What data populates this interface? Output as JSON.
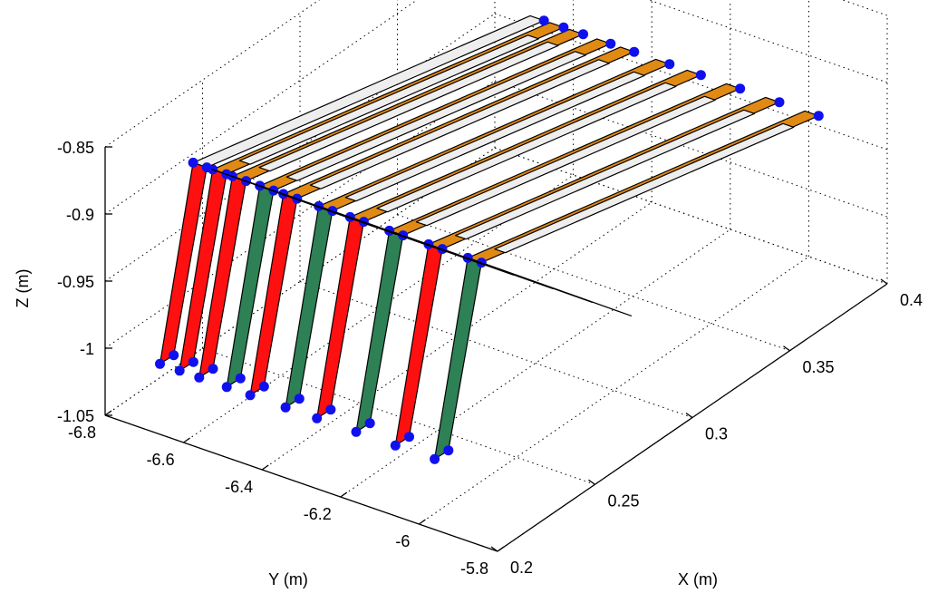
{
  "chart_data": {
    "type": "3d-surface",
    "title": "",
    "xlabel": "X (m)",
    "ylabel": "Y (m)",
    "zlabel": "Z (m)",
    "xlim": [
      0.2,
      0.4
    ],
    "ylim": [
      -6.8,
      -5.8
    ],
    "zlim": [
      -1.05,
      -0.85
    ],
    "x_ticks": [
      "0.2",
      "0.25",
      "0.3",
      "0.35",
      "0.4"
    ],
    "y_ticks": [
      "-5.8",
      "-6",
      "-6.2",
      "-6.4",
      "-6.6",
      "-6.8"
    ],
    "z_ticks": [
      "-1.05",
      "-1",
      "-0.95",
      "-0.9",
      "-0.85"
    ],
    "grid": true,
    "colors": {
      "orange": "#e08a14",
      "green": "#2e8055",
      "red": "#ff1010",
      "white": "#eeeeee",
      "marker": "#1010ee"
    },
    "panel_groups": [
      {
        "y": -5.95,
        "top": "orange",
        "side": "green"
      },
      {
        "y": -6.05,
        "top": "orange",
        "side": "red"
      },
      {
        "y": -6.15,
        "top": "orange",
        "side": "green"
      },
      {
        "y": -6.25,
        "top": "orange",
        "side": "red"
      },
      {
        "y": -6.33,
        "top": "orange",
        "side": "green"
      },
      {
        "y": -6.42,
        "top": "orange",
        "side": "red"
      },
      {
        "y": -6.48,
        "top": "orange",
        "side": "green"
      },
      {
        "y": -6.55,
        "top": "orange",
        "side": "red"
      },
      {
        "y": -6.6,
        "top": "orange",
        "side": "red"
      },
      {
        "y": -6.65,
        "top": "white",
        "side": "red"
      }
    ]
  }
}
